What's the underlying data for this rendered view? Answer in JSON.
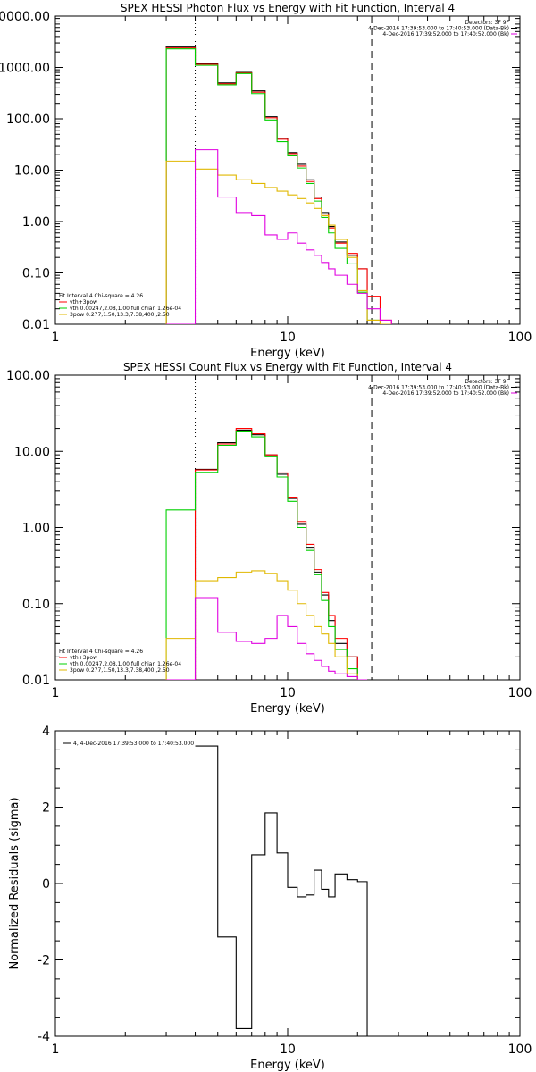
{
  "colors": {
    "black": "#000000",
    "red": "#ff0000",
    "green": "#00d000",
    "yellow": "#e0b800",
    "magenta": "#e000e0"
  },
  "chart_data": [
    {
      "type": "line",
      "title": "SPEX HESSI Photon Flux vs Energy with Fit Function, Interval 4",
      "xlabel": "Energy (keV)",
      "ylabel": "",
      "xscale": "log",
      "yscale": "log",
      "xlim": [
        1,
        100
      ],
      "ylim": [
        0.01,
        10000
      ],
      "xticks": [
        1,
        10,
        100
      ],
      "xtick_labels": [
        "1",
        "10",
        "100"
      ],
      "yticks": [
        0.01,
        0.1,
        1,
        10,
        100,
        1000,
        10000
      ],
      "ytick_labels": [
        "0.01",
        "0.10",
        "1.00",
        "10.00",
        "100.00",
        "1000.00",
        "10000.00"
      ],
      "vlines": [
        {
          "x": 4.0,
          "style": "dotted"
        },
        {
          "x": 23.0,
          "style": "dashed"
        }
      ],
      "legend_tr": [
        {
          "text": "Detectors: 3F 9F",
          "color": "black"
        },
        {
          "text": "4-Dec-2016 17:39:53.000 to 17:40:53.000 (Data-Bk)",
          "color": "black"
        },
        {
          "text": "4-Dec-2016 17:39:52.000 to 17:40:52.000 (Bk)",
          "color": "magenta"
        }
      ],
      "legend_bl": [
        {
          "text": "Fit Interval 4   Chi-square = 4.26",
          "color": "black"
        },
        {
          "text": "vth+3pow",
          "color": "red"
        },
        {
          "text": "vth 0.00247,2.08,1.00  full chian 1.26e-04",
          "color": "green"
        },
        {
          "text": "3pow 0.277,1.50,13.3,7.38,400.,2.50",
          "color": "yellow"
        }
      ],
      "edges": [
        3.0,
        4.0,
        5.0,
        6.0,
        7.0,
        8.0,
        9.0,
        10.0,
        11.0,
        12.0,
        13.0,
        14.0,
        15.0,
        16.0,
        18.0,
        20.0,
        22.0,
        25.0,
        28.0
      ],
      "series": [
        {
          "color": "black",
          "values": [
            2500,
            1200,
            500,
            800,
            350,
            110,
            42,
            22,
            13,
            6.5,
            3.0,
            1.5,
            0.8,
            0.4,
            0.22,
            0.12,
            0.0,
            0.0
          ]
        },
        {
          "color": "red",
          "values": [
            2400,
            1150,
            480,
            780,
            330,
            105,
            40,
            21,
            12,
            6.0,
            2.8,
            1.4,
            0.75,
            0.38,
            0.24,
            0.12,
            0.035,
            0.012
          ]
        },
        {
          "color": "green",
          "values": [
            2300,
            1100,
            460,
            760,
            310,
            95,
            36,
            19,
            11,
            5.5,
            2.5,
            1.2,
            0.6,
            0.3,
            0.15,
            0.042,
            0.012,
            0.0
          ]
        },
        {
          "color": "yellow",
          "values": [
            15,
            10.5,
            8.0,
            6.5,
            5.5,
            4.6,
            3.9,
            3.3,
            2.8,
            2.3,
            1.8,
            1.3,
            0.85,
            0.45,
            0.2,
            0.045,
            0.012,
            0.0
          ]
        },
        {
          "color": "magenta",
          "values": [
            0.0,
            25,
            3.0,
            1.5,
            1.3,
            0.55,
            0.45,
            0.6,
            0.38,
            0.28,
            0.22,
            0.16,
            0.12,
            0.09,
            0.06,
            0.04,
            0.02,
            0.012
          ]
        }
      ]
    },
    {
      "type": "line",
      "title": "SPEX HESSI Count Flux vs Energy with Fit Function, Interval 4",
      "xlabel": "Energy (keV)",
      "ylabel": "",
      "xscale": "log",
      "yscale": "log",
      "xlim": [
        1,
        100
      ],
      "ylim": [
        0.01,
        100
      ],
      "xticks": [
        1,
        10,
        100
      ],
      "xtick_labels": [
        "1",
        "10",
        "100"
      ],
      "yticks": [
        0.01,
        0.1,
        1,
        10,
        100
      ],
      "ytick_labels": [
        "0.01",
        "0.10",
        "1.00",
        "10.00",
        "100.00"
      ],
      "vlines": [
        {
          "x": 4.0,
          "style": "dotted"
        },
        {
          "x": 23.0,
          "style": "dashed"
        }
      ],
      "legend_tr": [
        {
          "text": "Detectors: 3F 9F",
          "color": "black"
        },
        {
          "text": "4-Dec-2016 17:39:53.000 to 17:40:53.000 (Data-Bk)",
          "color": "black"
        },
        {
          "text": "4-Dec-2016 17:39:52.000 to 17:40:52.000 (Bk)",
          "color": "magenta"
        }
      ],
      "legend_bl": [
        {
          "text": "Fit Interval 4   Chi-square = 4.26",
          "color": "black"
        },
        {
          "text": "vth+3pow",
          "color": "red"
        },
        {
          "text": "vth 0.00247,2.08,1.00  full chian 1.26e-04",
          "color": "green"
        },
        {
          "text": "3pow 0.277,1.50,13.3,7.38,400.,2.50",
          "color": "yellow"
        }
      ],
      "edges": [
        3.0,
        4.0,
        5.0,
        6.0,
        7.0,
        8.0,
        9.0,
        10.0,
        11.0,
        12.0,
        13.0,
        14.0,
        15.0,
        16.0,
        18.0,
        20.0,
        22.0
      ],
      "series": [
        {
          "color": "black",
          "values": [
            0.0,
            5.8,
            13.0,
            19.0,
            16.5,
            9.0,
            5.0,
            2.4,
            1.1,
            0.55,
            0.26,
            0.13,
            0.06,
            0.03,
            0.02,
            0.0
          ]
        },
        {
          "color": "red",
          "values": [
            0.0,
            5.7,
            12.5,
            20.0,
            17.0,
            9.0,
            5.2,
            2.5,
            1.2,
            0.6,
            0.28,
            0.14,
            0.07,
            0.035,
            0.02,
            0.01
          ]
        },
        {
          "color": "green",
          "values": [
            1.7,
            5.3,
            12.0,
            18.0,
            15.5,
            8.5,
            4.6,
            2.2,
            1.0,
            0.5,
            0.24,
            0.11,
            0.05,
            0.025,
            0.014,
            0.01
          ]
        },
        {
          "color": "yellow",
          "values": [
            0.035,
            0.2,
            0.22,
            0.26,
            0.27,
            0.25,
            0.2,
            0.15,
            0.1,
            0.07,
            0.05,
            0.04,
            0.03,
            0.02,
            0.012,
            0.0
          ]
        },
        {
          "color": "magenta",
          "values": [
            0.0,
            0.12,
            0.042,
            0.032,
            0.03,
            0.035,
            0.07,
            0.05,
            0.03,
            0.022,
            0.018,
            0.015,
            0.013,
            0.012,
            0.011,
            0.0
          ]
        }
      ]
    },
    {
      "type": "line",
      "title": "",
      "xlabel": "Energy (keV)",
      "ylabel": "Normalized Residuals (sigma)",
      "xscale": "log",
      "yscale": "linear",
      "xlim": [
        1,
        100
      ],
      "ylim": [
        -4,
        4
      ],
      "xticks": [
        1,
        10,
        100
      ],
      "xtick_labels": [
        "1",
        "10",
        "100"
      ],
      "yticks": [
        -4,
        -2,
        0,
        2,
        4
      ],
      "ytick_labels": [
        "-4",
        "-2",
        "0",
        "2",
        "4"
      ],
      "legend_tl": [
        {
          "text": "4, 4-Dec-2016 17:39:53.000 to 17:40:53.000",
          "color": "black"
        }
      ],
      "edges": [
        4.0,
        5.0,
        6.0,
        7.0,
        8.0,
        9.0,
        10.0,
        11.0,
        12.0,
        13.0,
        14.0,
        15.0,
        16.0,
        18.0,
        20.0,
        22.0
      ],
      "series": [
        {
          "color": "black",
          "values": [
            3.6,
            -1.4,
            -3.8,
            0.75,
            1.85,
            0.8,
            -0.1,
            -0.35,
            -0.3,
            0.35,
            -0.15,
            -0.35,
            0.25,
            0.1,
            0.05
          ]
        }
      ]
    }
  ]
}
